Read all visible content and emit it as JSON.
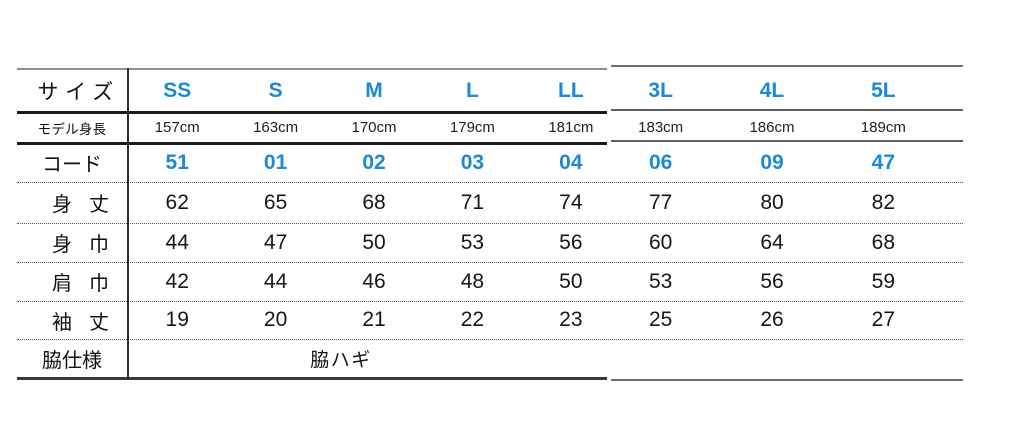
{
  "chart_data": {
    "type": "table",
    "corner_label": "サイズ",
    "size_columns": [
      "SS",
      "S",
      "M",
      "L",
      "LL",
      "3L",
      "4L",
      "5L"
    ],
    "rows": [
      {
        "label": "モデル身長",
        "values": [
          "157cm",
          "163cm",
          "170cm",
          "179cm",
          "181cm",
          "183cm",
          "186cm",
          "189cm"
        ]
      },
      {
        "label": "コード",
        "values": [
          "51",
          "01",
          "02",
          "03",
          "04",
          "06",
          "09",
          "47"
        ]
      },
      {
        "label": "身丈",
        "values": [
          "62",
          "65",
          "68",
          "71",
          "74",
          "77",
          "80",
          "82"
        ]
      },
      {
        "label": "身巾",
        "values": [
          "44",
          "47",
          "50",
          "53",
          "56",
          "60",
          "64",
          "68"
        ]
      },
      {
        "label": "肩巾",
        "values": [
          "42",
          "44",
          "46",
          "48",
          "50",
          "53",
          "56",
          "59"
        ]
      },
      {
        "label": "袖丈",
        "values": [
          "19",
          "20",
          "21",
          "22",
          "23",
          "25",
          "26",
          "27"
        ]
      },
      {
        "label": "脇仕様",
        "span_value": "脇ハギ"
      }
    ],
    "layout": {
      "grid": "horizontal rules only, single vertical rule after label column, gap between LL and 3L column groups"
    },
    "colors": {
      "accent_blue": "#1d88d3",
      "text_black": "#161616",
      "rule_dark": "#1c1c1c",
      "rule_gray": "#8f8f8f",
      "background": "#ffffff"
    }
  }
}
